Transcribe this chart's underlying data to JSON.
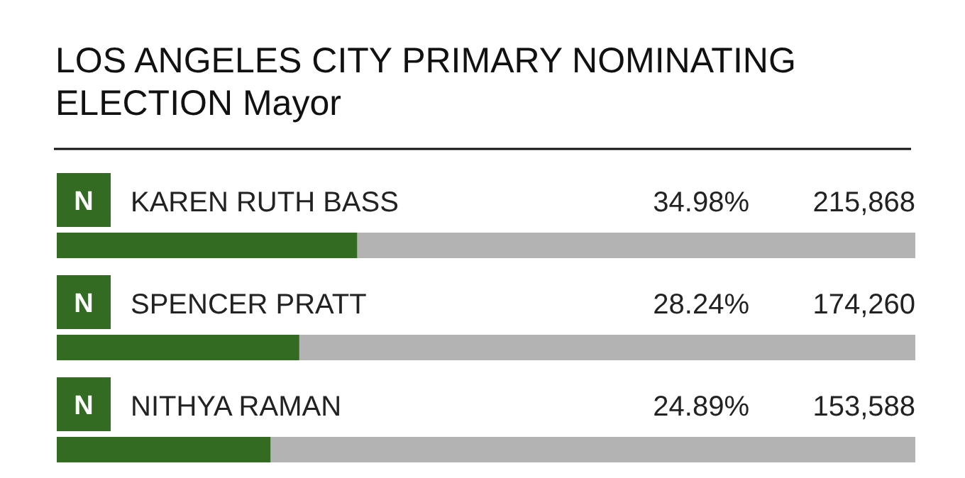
{
  "chart_data": {
    "type": "bar",
    "orientation": "horizontal",
    "title": "LOS ANGELES CITY PRIMARY NOMINATING ELECTION Mayor",
    "categories": [
      "KAREN RUTH BASS",
      "SPENCER PRATT",
      "NITHYA RAMAN"
    ],
    "values": [
      34.98,
      28.24,
      24.89
    ],
    "value_labels": [
      "34.98%",
      "28.24%",
      "24.89%"
    ],
    "color": "#336b23",
    "xlim": [
      0,
      100
    ],
    "annotations": [
      "215,868",
      "174,260",
      "153,588",
      "N",
      "N",
      "N"
    ]
  }
}
